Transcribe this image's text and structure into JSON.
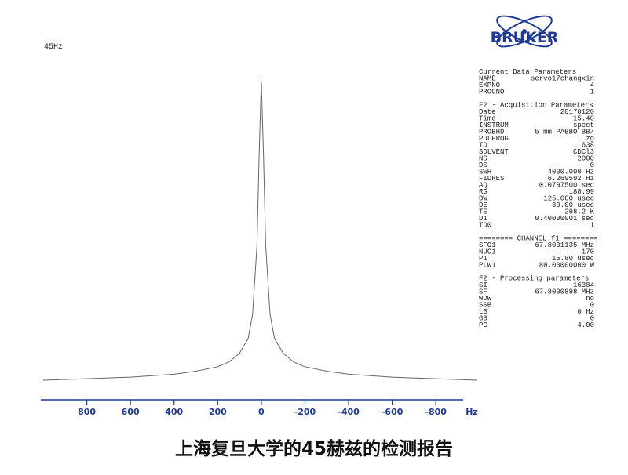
{
  "chart_data": {
    "type": "line",
    "title": "45Hz",
    "xlabel": "Hz",
    "x": [
      1000,
      800,
      600,
      400,
      300,
      200,
      150,
      100,
      60,
      40,
      20,
      10,
      0,
      -10,
      -20,
      -40,
      -60,
      -100,
      -150,
      -200,
      -300,
      -400,
      -600,
      -800,
      -990
    ],
    "values": [
      0,
      0.5,
      1,
      2,
      3,
      4.5,
      6,
      9,
      14,
      22,
      45,
      75,
      100,
      75,
      45,
      22,
      14,
      9,
      6,
      4.5,
      3,
      2,
      1,
      0.5,
      0
    ],
    "color": "#666666",
    "axis_color": "#1f3a93",
    "xlim": [
      1000,
      -990
    ],
    "ylim": [
      0,
      100
    ],
    "xticks": [
      800,
      600,
      400,
      200,
      0,
      -200,
      -400,
      -600,
      -800
    ]
  },
  "logo": "BRUKER",
  "parameters": [
    [
      [
        "Current Data Parameters"
      ],
      [
        "NAME",
        "servo17changxin"
      ],
      [
        "EXPNO",
        "4"
      ],
      [
        "PROCNO",
        "1"
      ]
    ],
    [
      [
        "F2 - Acquisition Parameters"
      ],
      [
        "Date_",
        "20170120"
      ],
      [
        "Time",
        "15.40"
      ],
      [
        "INSTRUM",
        "spect"
      ],
      [
        "PROBHD",
        "5 mm PABBO BB/"
      ],
      [
        "PULPROG",
        "zg"
      ],
      [
        "TD",
        "638"
      ],
      [
        "SOLVENT",
        "CDCl3"
      ],
      [
        "NS",
        "2000"
      ],
      [
        "DS",
        "0"
      ],
      [
        "SWH",
        "4000.000 Hz"
      ],
      [
        "FIDRES",
        "6.269592 Hz"
      ],
      [
        "AQ",
        "0.0797500 sec"
      ],
      [
        "RG",
        "188.99"
      ],
      [
        "DW",
        "125.000 usec"
      ],
      [
        "DE",
        "30.00 usec"
      ],
      [
        "TE",
        "298.2 K"
      ],
      [
        "D1",
        "0.40000001 sec"
      ],
      [
        "TD0",
        "1"
      ]
    ],
    [
      [
        "======== CHANNEL f1 ========"
      ],
      [
        "SFO1",
        "67.8001135 MHz"
      ],
      [
        "NUC1",
        "170"
      ],
      [
        "P1",
        "15.80 usec"
      ],
      [
        "PLW1",
        "80.00000000 W"
      ]
    ],
    [
      [
        "F2 - Processing parameters"
      ],
      [
        "SI",
        "16384"
      ],
      [
        "SF",
        "67.8000898 MHz"
      ],
      [
        "WDW",
        "no"
      ],
      [
        "SSB",
        "0"
      ],
      [
        "LB",
        "0 Hz"
      ],
      [
        "GB",
        "0"
      ],
      [
        "PC",
        "4.00"
      ]
    ]
  ],
  "caption": "上海复旦大学的45赫兹的检测报告"
}
